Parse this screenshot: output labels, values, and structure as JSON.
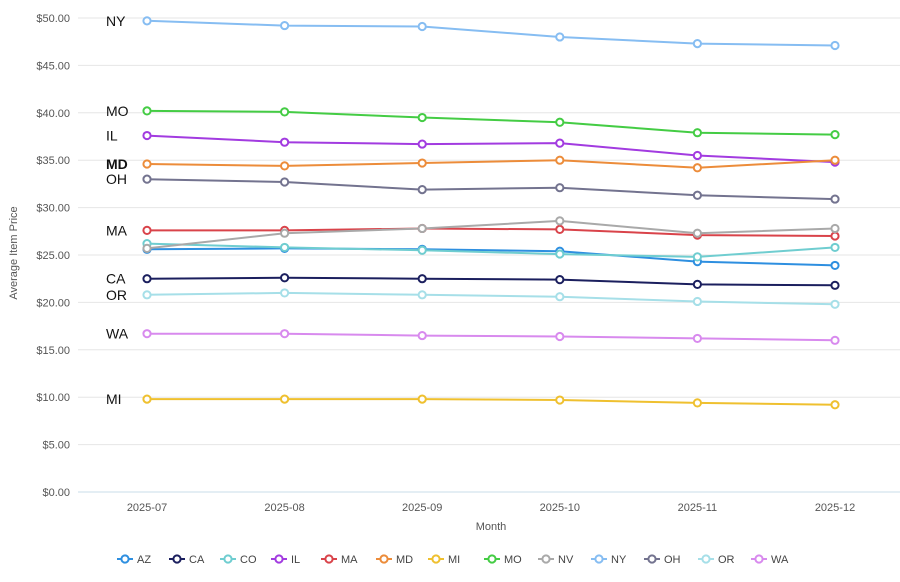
{
  "chart_data": {
    "type": "line",
    "title": "",
    "xlabel": "Month",
    "ylabel": "Average Item Price",
    "ylim": [
      0,
      50
    ],
    "yticks": [
      "$0.00",
      "$5.00",
      "$10.00",
      "$15.00",
      "$20.00",
      "$25.00",
      "$30.00",
      "$35.00",
      "$40.00",
      "$45.00",
      "$50.00"
    ],
    "categories": [
      "2025-07",
      "2025-08",
      "2025-09",
      "2025-10",
      "2025-11",
      "2025-12"
    ],
    "series": [
      {
        "name": "AZ",
        "color": "#2e8fe0",
        "values": [
          25.6,
          25.7,
          25.6,
          25.4,
          24.3,
          23.9
        ]
      },
      {
        "name": "CA",
        "color": "#1b1f5e",
        "values": [
          22.5,
          22.6,
          22.5,
          22.4,
          21.9,
          21.8
        ]
      },
      {
        "name": "CO",
        "color": "#6fcdd0",
        "values": [
          26.2,
          25.8,
          25.5,
          25.1,
          24.8,
          25.8
        ]
      },
      {
        "name": "IL",
        "color": "#a23be0",
        "values": [
          37.6,
          36.9,
          36.7,
          36.8,
          35.5,
          34.8
        ]
      },
      {
        "name": "MA",
        "color": "#d9434a",
        "values": [
          27.6,
          27.6,
          27.8,
          27.7,
          27.1,
          27.0
        ]
      },
      {
        "name": "MD",
        "color": "#ec8c3a",
        "values": [
          34.6,
          34.4,
          34.7,
          35.0,
          34.2,
          35.0
        ]
      },
      {
        "name": "MI",
        "color": "#efc02f",
        "values": [
          9.8,
          9.8,
          9.8,
          9.7,
          9.4,
          9.2
        ]
      },
      {
        "name": "MO",
        "color": "#44cc44",
        "values": [
          40.2,
          40.1,
          39.5,
          39.0,
          37.9,
          37.7
        ]
      },
      {
        "name": "NV",
        "color": "#a9a9a9",
        "values": [
          25.7,
          27.3,
          27.8,
          28.6,
          27.3,
          27.8
        ]
      },
      {
        "name": "NY",
        "color": "#86bdf2",
        "values": [
          49.7,
          49.2,
          49.1,
          48.0,
          47.3,
          47.1
        ]
      },
      {
        "name": "OH",
        "color": "#73738f",
        "values": [
          33.0,
          32.7,
          31.9,
          32.1,
          31.3,
          30.9
        ]
      },
      {
        "name": "OR",
        "color": "#a6dfe8",
        "values": [
          20.8,
          21.0,
          20.8,
          20.6,
          20.1,
          19.8
        ]
      },
      {
        "name": "WA",
        "color": "#d88aee",
        "values": [
          16.7,
          16.7,
          16.5,
          16.4,
          16.2,
          16.0
        ]
      }
    ],
    "series_labels": [
      {
        "text": "NY",
        "series": "NY",
        "color": "#111111",
        "bold": false
      },
      {
        "text": "MO",
        "series": "MO",
        "color": "#111111",
        "bold": false
      },
      {
        "text": "IL",
        "series": "IL",
        "color": "#111111",
        "bold": false
      },
      {
        "text": "MD",
        "series": "MD",
        "color": "#ec8c3a",
        "bold": true
      },
      {
        "text": "OH",
        "series": "OH",
        "color": "#111111",
        "bold": false
      },
      {
        "text": "MA",
        "series": "MA",
        "color": "#111111",
        "bold": false
      },
      {
        "text": "CA",
        "series": "CA",
        "color": "#111111",
        "bold": false
      },
      {
        "text": "OR",
        "series": "OR",
        "color": "#111111",
        "bold": false
      },
      {
        "text": "WA",
        "series": "WA",
        "color": "#111111",
        "bold": false
      },
      {
        "text": "MI",
        "series": "MI",
        "color": "#111111",
        "bold": false
      }
    ],
    "legend_position": "bottom",
    "grid": true
  }
}
